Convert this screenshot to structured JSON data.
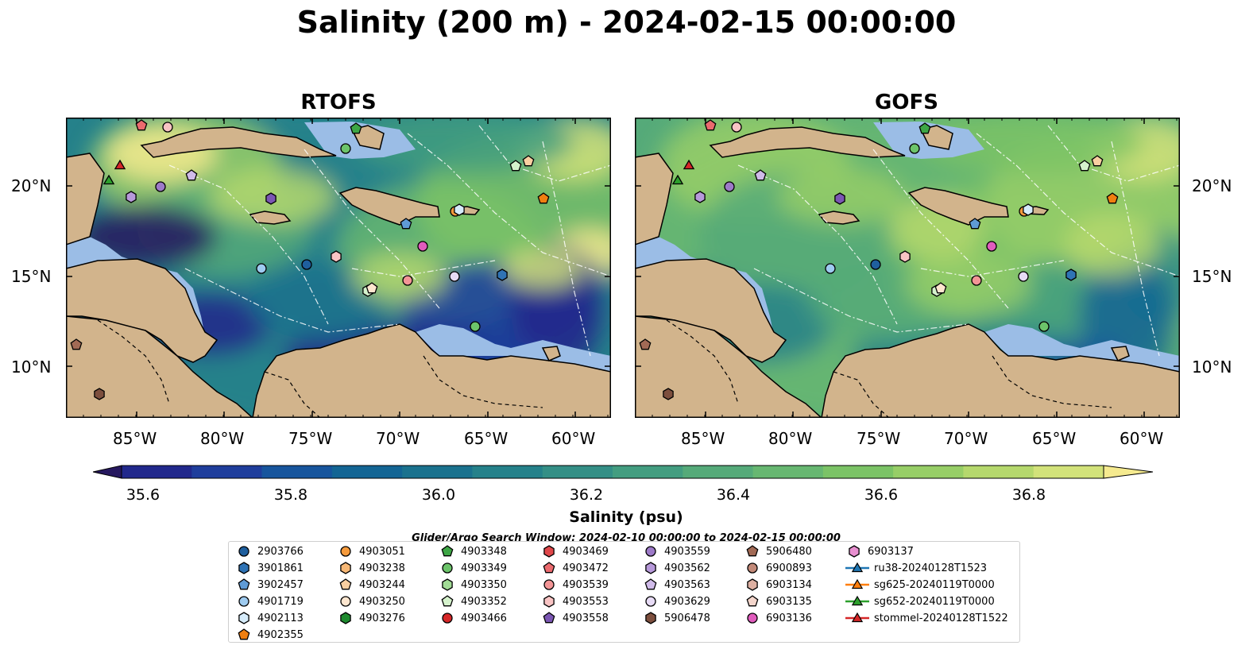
{
  "title": "Salinity (200 m) - 2024-02-15 00:00:00",
  "panels": [
    {
      "title": "RTOFS"
    },
    {
      "title": "GOFS"
    }
  ],
  "lon_ticks": [
    "85°W",
    "80°W",
    "75°W",
    "70°W",
    "65°W",
    "60°W"
  ],
  "lat_ticks": [
    "20°N",
    "15°N",
    "10°N"
  ],
  "colorbar": {
    "label": "Salinity (psu)",
    "ticks": [
      "35.6",
      "35.8",
      "36.0",
      "36.2",
      "36.4",
      "36.6",
      "36.8"
    ],
    "colors": [
      "#26185f",
      "#21288c",
      "#1f3e9c",
      "#17559d",
      "#136594",
      "#1a728e",
      "#25818a",
      "#348f86",
      "#439d80",
      "#55aa79",
      "#67b771",
      "#7bc366",
      "#97ce67",
      "#b5d86d",
      "#d2e27a",
      "#f5ea8f"
    ],
    "extend": "both"
  },
  "search_window": "Glider/Argo Search Window: 2024-02-10 00:00:00 to 2024-02-15 00:00:00",
  "legend": [
    {
      "label": "2903766",
      "marker": "circle",
      "color": "#1f5f9e"
    },
    {
      "label": "3901861",
      "marker": "hexagon",
      "color": "#2f73b5"
    },
    {
      "label": "3902457",
      "marker": "pentagon",
      "color": "#5f9bd6"
    },
    {
      "label": "4901719",
      "marker": "circle",
      "color": "#9ecbf0"
    },
    {
      "label": "4902113",
      "marker": "hexagon",
      "color": "#d6ecfb"
    },
    {
      "label": "4902355",
      "marker": "pentagon",
      "color": "#f07f10"
    },
    {
      "label": "4903051",
      "marker": "circle",
      "color": "#f59a3c"
    },
    {
      "label": "4903238",
      "marker": "hexagon",
      "color": "#f7b876"
    },
    {
      "label": "4903244",
      "marker": "pentagon",
      "color": "#f9cfa1"
    },
    {
      "label": "4903250",
      "marker": "circle",
      "color": "#fde6cf"
    },
    {
      "label": "4903276",
      "marker": "hexagon",
      "color": "#1e8a2e"
    },
    {
      "label": "4903348",
      "marker": "pentagon",
      "color": "#3da645"
    },
    {
      "label": "4903349",
      "marker": "circle",
      "color": "#6cc46a"
    },
    {
      "label": "4903350",
      "marker": "hexagon",
      "color": "#a2dc96"
    },
    {
      "label": "4903352",
      "marker": "pentagon",
      "color": "#d5f2cc"
    },
    {
      "label": "4903466",
      "marker": "circle",
      "color": "#d62728"
    },
    {
      "label": "4903469",
      "marker": "hexagon",
      "color": "#e0474a"
    },
    {
      "label": "4903472",
      "marker": "pentagon",
      "color": "#eb6a6e"
    },
    {
      "label": "4903539",
      "marker": "circle",
      "color": "#f39596"
    },
    {
      "label": "4903553",
      "marker": "hexagon",
      "color": "#f9c4c4"
    },
    {
      "label": "4903558",
      "marker": "pentagon",
      "color": "#7b56b3"
    },
    {
      "label": "4903559",
      "marker": "circle",
      "color": "#9d7ac8"
    },
    {
      "label": "4903562",
      "marker": "hexagon",
      "color": "#b799da"
    },
    {
      "label": "4903563",
      "marker": "pentagon",
      "color": "#d0bbe9"
    },
    {
      "label": "4903629",
      "marker": "circle",
      "color": "#e7dbf5"
    },
    {
      "label": "5906478",
      "marker": "hexagon",
      "color": "#7d4f3e"
    },
    {
      "label": "5906480",
      "marker": "pentagon",
      "color": "#a26a55"
    },
    {
      "label": "6900893",
      "marker": "circle",
      "color": "#c38a79"
    },
    {
      "label": "6903134",
      "marker": "hexagon",
      "color": "#ddb0a2"
    },
    {
      "label": "6903135",
      "marker": "pentagon",
      "color": "#f4d6cc"
    },
    {
      "label": "6903136",
      "marker": "circle",
      "color": "#e05cbd"
    },
    {
      "label": "6903137",
      "marker": "hexagon",
      "color": "#e88fd0"
    },
    {
      "label": "ru38-20240128T1523",
      "marker": "triangle-line",
      "color": "#1f77b4"
    },
    {
      "label": "sg625-20240119T0000",
      "marker": "triangle-line",
      "color": "#ff7f0e"
    },
    {
      "label": "sg652-20240119T0000",
      "marker": "triangle-line",
      "color": "#2ca02c"
    },
    {
      "label": "stommel-20240128T1522",
      "marker": "triangle-line",
      "color": "#d62728"
    }
  ],
  "land_color": "#d2b48c",
  "shelf_color": "#9bbde6"
}
